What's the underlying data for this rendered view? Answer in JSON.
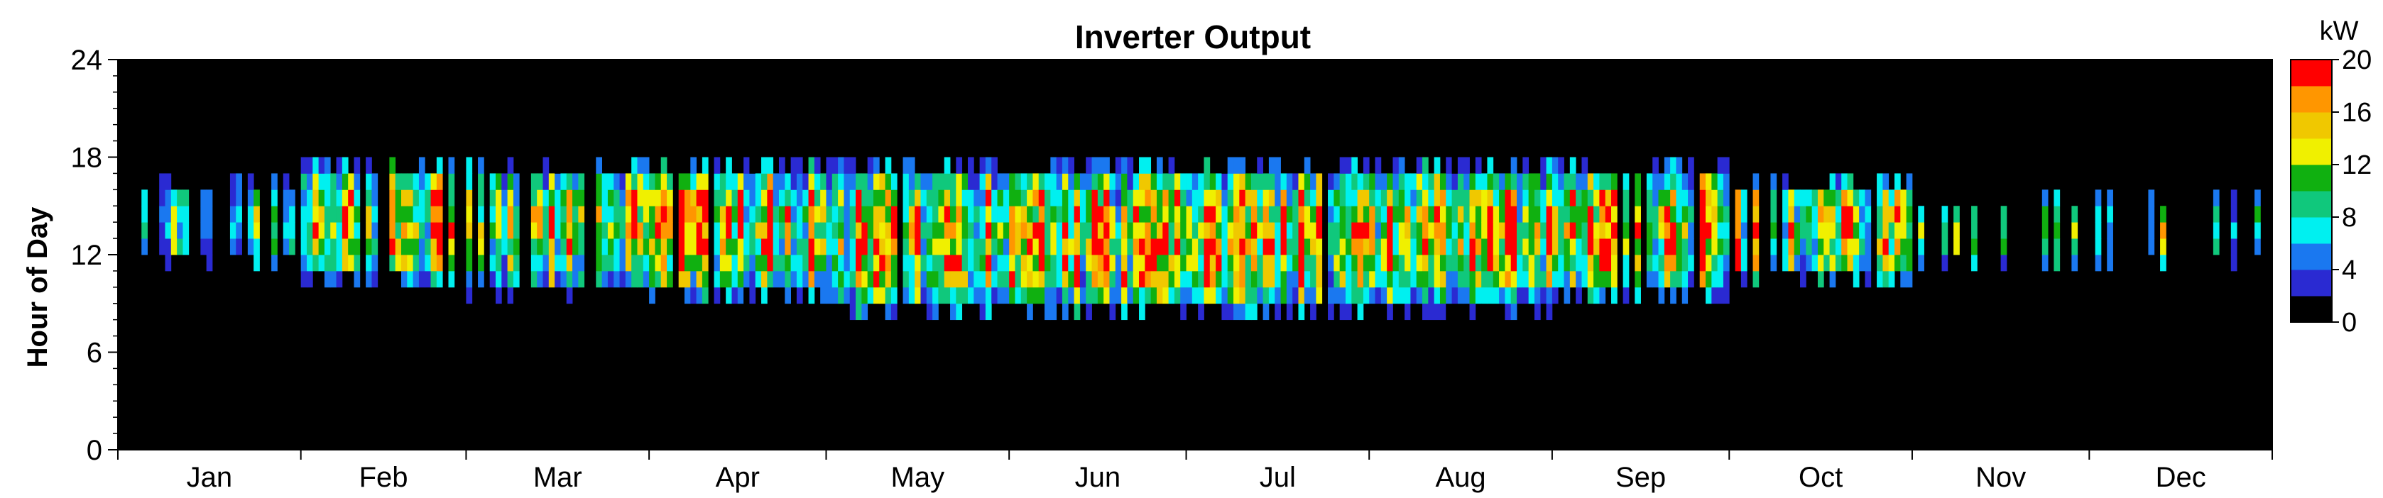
{
  "chart_data": {
    "type": "heatmap",
    "title": "Inverter Output",
    "ylabel": "Hour of Day",
    "xlabel": "",
    "x_categories": [
      "Jan",
      "Feb",
      "Mar",
      "Apr",
      "May",
      "Jun",
      "Jul",
      "Aug",
      "Sep",
      "Oct",
      "Nov",
      "Dec"
    ],
    "x_range_days": [
      1,
      365
    ],
    "days_in_month": [
      31,
      28,
      31,
      30,
      31,
      30,
      31,
      31,
      30,
      31,
      30,
      31
    ],
    "ylim": [
      0,
      24
    ],
    "y_ticks": [
      0,
      6,
      12,
      18,
      24
    ],
    "colorbar": {
      "label": "kW",
      "range": [
        0,
        20
      ],
      "ticks": [
        0,
        4,
        8,
        12,
        16,
        20
      ],
      "colors": [
        "#000000",
        "#2a2ad2",
        "#1a78f0",
        "#00f0f0",
        "#10c87c",
        "#10b010",
        "#f0f000",
        "#f0c800",
        "#ff9600",
        "#ff0000"
      ]
    },
    "background_color": "#000000",
    "daily_profile_kW": [
      {
        "month": "Jan",
        "start_hour": 11,
        "end_hour": 17,
        "peak_kW": 12,
        "coverage": 0.45
      },
      {
        "month": "Feb",
        "start_hour": 10,
        "end_hour": 18,
        "peak_kW": 20,
        "coverage": 0.75
      },
      {
        "month": "Mar",
        "start_hour": 9.5,
        "end_hour": 18,
        "peak_kW": 20,
        "coverage": 0.8
      },
      {
        "month": "Apr",
        "start_hour": 9,
        "end_hour": 18,
        "peak_kW": 20,
        "coverage": 0.95
      },
      {
        "month": "May",
        "start_hour": 8,
        "end_hour": 18,
        "peak_kW": 20,
        "coverage": 0.95
      },
      {
        "month": "Jun",
        "start_hour": 8,
        "end_hour": 18,
        "peak_kW": 20,
        "coverage": 0.95
      },
      {
        "month": "Jul",
        "start_hour": 8,
        "end_hour": 18,
        "peak_kW": 20,
        "coverage": 0.95
      },
      {
        "month": "Aug",
        "start_hour": 8.5,
        "end_hour": 18,
        "peak_kW": 20,
        "coverage": 0.95
      },
      {
        "month": "Sep",
        "start_hour": 9,
        "end_hour": 18,
        "peak_kW": 20,
        "coverage": 0.85
      },
      {
        "month": "Oct",
        "start_hour": 10,
        "end_hour": 17,
        "peak_kW": 18,
        "coverage": 0.7
      },
      {
        "month": "Nov",
        "start_hour": 11,
        "end_hour": 16,
        "peak_kW": 15,
        "coverage": 0.2
      },
      {
        "month": "Dec",
        "start_hour": 11,
        "end_hour": 16,
        "peak_kW": 14,
        "coverage": 0.15
      }
    ]
  }
}
